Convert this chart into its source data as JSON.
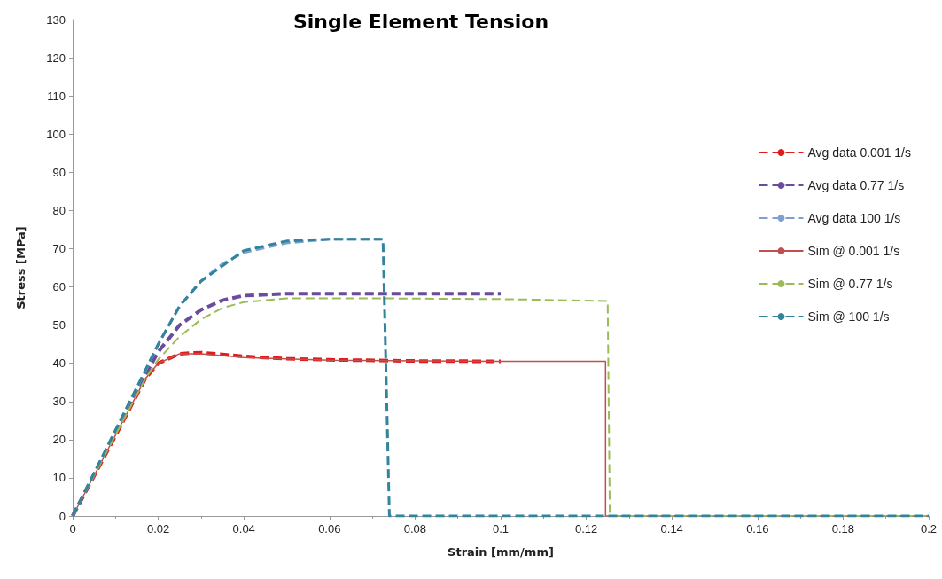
{
  "chart_data": {
    "type": "line",
    "title": "Single Element Tension",
    "xlabel": "Strain [mm/mm]",
    "ylabel": "Stress [MPa]",
    "xlim": [
      0,
      0.2
    ],
    "xticks": [
      0,
      0.02,
      0.04,
      0.06,
      0.08,
      0.1,
      0.12,
      0.14,
      0.16,
      0.18,
      0.2
    ],
    "ylim": [
      0,
      130
    ],
    "yticks": [
      0,
      10,
      20,
      30,
      40,
      50,
      60,
      70,
      80,
      90,
      100,
      110,
      120,
      130
    ],
    "grid": false,
    "legend": "right",
    "marker": "none",
    "series": [
      {
        "name": "Avg data 0.001 1/s",
        "color": "#e31a1c",
        "line_style": "dashed",
        "x": [
          0,
          0.01,
          0.017,
          0.02,
          0.025,
          0.03,
          0.04,
          0.05,
          0.06,
          0.08,
          0.1
        ],
        "values": [
          0,
          21,
          36,
          40,
          42.5,
          42.8,
          41.8,
          41.2,
          40.9,
          40.6,
          40.5
        ]
      },
      {
        "name": "Avg data 0.77 1/s",
        "color": "#6a4c9c",
        "line_style": "dashed",
        "x": [
          0,
          0.017,
          0.02,
          0.025,
          0.03,
          0.035,
          0.04,
          0.05,
          0.1
        ],
        "values": [
          0,
          37,
          43,
          50,
          54,
          56.5,
          57.7,
          58.2,
          58.2
        ]
      },
      {
        "name": "Avg data 100 1/s",
        "color": "#7f9fd0",
        "line_style": "dashed",
        "x": [
          0,
          0.017,
          0.02,
          0.025,
          0.03,
          0.035,
          0.04,
          0.05,
          0.06,
          0.072
        ],
        "values": [
          0,
          38,
          45,
          55,
          61.5,
          66,
          69,
          71.5,
          72.5,
          72.5
        ]
      },
      {
        "name": "Sim @ 0.001 1/s",
        "color": "#c0504d",
        "line_style": "solid",
        "x": [
          0,
          0.017,
          0.02,
          0.025,
          0.03,
          0.04,
          0.06,
          0.1,
          0.1245,
          0.1245,
          0.2
        ],
        "values": [
          0,
          36,
          40,
          42.5,
          42.5,
          41.5,
          40.8,
          40.5,
          40.5,
          0,
          0
        ]
      },
      {
        "name": "Sim @ 0.77 1/s",
        "color": "#9bbb59",
        "line_style": "dashed",
        "x": [
          0,
          0.017,
          0.02,
          0.025,
          0.03,
          0.035,
          0.04,
          0.05,
          0.07,
          0.1,
          0.125,
          0.1255,
          0.2
        ],
        "values": [
          0,
          36,
          41,
          47,
          51.5,
          54.5,
          56,
          57,
          57,
          56.8,
          56.3,
          0,
          0
        ]
      },
      {
        "name": "Sim @ 100 1/s",
        "color": "#31849b",
        "line_style": "dashed",
        "x": [
          0,
          0.02,
          0.025,
          0.03,
          0.04,
          0.05,
          0.06,
          0.0725,
          0.074,
          0.2
        ],
        "values": [
          0,
          45,
          55,
          61.5,
          69.5,
          72,
          72.5,
          72.5,
          0,
          0
        ]
      }
    ]
  }
}
